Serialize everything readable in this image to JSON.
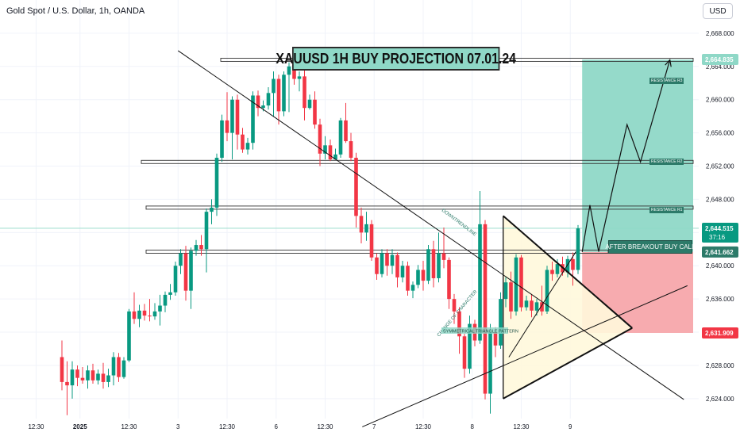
{
  "header": {
    "symbol": "Gold Spot / U.S. Dollar, 1h, OANDA",
    "currency": "USD"
  },
  "annotations": {
    "title": "XAUUSD 1H BUY PROJECTION 07.01.24",
    "buy_call": "AFTER BREAKOUT BUY CALL",
    "resistance_r1": "RESISTANCE R1",
    "resistance_r2": "RESISTANCE R2",
    "resistance_r3": "RESISTANCE R3",
    "downtrendline": "DOWNTRENDLINE",
    "change_of_character": "CHANGE OF CHARACTER",
    "triangle": "SYMMETRICAL TRIANGLE PATTERN"
  },
  "price_tags": {
    "target": "2,664.835",
    "current": "2,644.515",
    "countdown": "37:16",
    "entry": "2,641.662",
    "stop": "2,631.909"
  },
  "colors": {
    "up": "#089981",
    "down": "#f23645",
    "target_zone": "#8fd8c7",
    "stop_zone": "#f7a6ab",
    "triangle_fill": "#fff8dc",
    "label_green": "#2c7a69",
    "stop_tag": "#f23645"
  },
  "chart_data": {
    "type": "candlestick",
    "y_axis": {
      "range": [
        2621.6,
        2672.0
      ],
      "ticks": [
        2624,
        2628,
        2632,
        2636,
        2640,
        2644,
        2648,
        2652,
        2656,
        2660,
        2664,
        2668
      ],
      "tick_labels": [
        "2,624.000",
        "2,628.000",
        "2,632.000",
        "2,636.000",
        "2,640.000",
        "2,644.000",
        "2,648.000",
        "2,652.000",
        "2,656.000",
        "2,660.000",
        "2,664.000",
        "2,668.000"
      ]
    },
    "x_axis": {
      "range": [
        0,
        110
      ],
      "ticks": [
        {
          "x": -5,
          "label": "12:30"
        },
        {
          "x": 3.5,
          "label": "2025",
          "bold": true
        },
        {
          "x": 13,
          "label": "12:30"
        },
        {
          "x": 22.5,
          "label": "3"
        },
        {
          "x": 32,
          "label": "12:30"
        },
        {
          "x": 41.5,
          "label": "6"
        },
        {
          "x": 51,
          "label": "12:30"
        },
        {
          "x": 60.5,
          "label": "7"
        },
        {
          "x": 70,
          "label": "12:30"
        },
        {
          "x": 79.5,
          "label": "8"
        },
        {
          "x": 89,
          "label": "12:30"
        },
        {
          "x": 98.5,
          "label": "9"
        }
      ]
    },
    "candles": [
      [
        2629.0,
        2626.0,
        2631.0,
        2625.0
      ],
      [
        2626.0,
        2625.6,
        2628.5,
        2622.0
      ],
      [
        2625.6,
        2627.5,
        2628.5,
        2624.0
      ],
      [
        2627.5,
        2626.5,
        2628.0,
        2625.5
      ],
      [
        2626.5,
        2626.2,
        2627.8,
        2625.8
      ],
      [
        2626.2,
        2627.4,
        2628.0,
        2625.2
      ],
      [
        2627.4,
        2626.2,
        2628.2,
        2625.8
      ],
      [
        2626.2,
        2627.0,
        2627.5,
        2625.7
      ],
      [
        2627.0,
        2626.0,
        2628.3,
        2625.2
      ],
      [
        2626.0,
        2626.8,
        2627.6,
        2625.4
      ],
      [
        2626.8,
        2629.0,
        2629.6,
        2625.6
      ],
      [
        2629.0,
        2626.6,
        2629.5,
        2626.0
      ],
      [
        2626.6,
        2628.6,
        2629.0,
        2626.4
      ],
      [
        2628.6,
        2634.5,
        2634.8,
        2628.4
      ],
      [
        2634.5,
        2633.6,
        2636.8,
        2633.0
      ],
      [
        2633.6,
        2634.6,
        2635.3,
        2632.6
      ],
      [
        2634.6,
        2634.0,
        2635.4,
        2633.4
      ],
      [
        2634.0,
        2633.9,
        2636.0,
        2633.3
      ],
      [
        2633.9,
        2634.5,
        2635.5,
        2633.5
      ],
      [
        2634.5,
        2635.2,
        2636.5,
        2632.8
      ],
      [
        2635.2,
        2636.5,
        2636.9,
        2634.4
      ],
      [
        2636.5,
        2636.8,
        2637.8,
        2635.9
      ],
      [
        2636.8,
        2640.0,
        2640.5,
        2636.4
      ],
      [
        2640.0,
        2641.5,
        2642.0,
        2639.0
      ],
      [
        2641.5,
        2637.0,
        2642.4,
        2635.8
      ],
      [
        2637.0,
        2641.8,
        2642.2,
        2634.8
      ],
      [
        2641.8,
        2642.5,
        2643.1,
        2641.2
      ],
      [
        2642.5,
        2642.0,
        2643.7,
        2641.2
      ],
      [
        2642.0,
        2646.5,
        2646.9,
        2639.2
      ],
      [
        2646.5,
        2647.0,
        2648.0,
        2645.0
      ],
      [
        2647.0,
        2653.0,
        2653.5,
        2646.0
      ],
      [
        2653.0,
        2657.5,
        2658.2,
        2652.5
      ],
      [
        2657.5,
        2656.0,
        2660.9,
        2655.0
      ],
      [
        2656.0,
        2660.0,
        2660.4,
        2652.8
      ],
      [
        2660.0,
        2655.8,
        2660.6,
        2654.0
      ],
      [
        2655.8,
        2654.0,
        2656.6,
        2653.6
      ],
      [
        2654.0,
        2654.8,
        2655.4,
        2653.4
      ],
      [
        2654.8,
        2660.5,
        2661.0,
        2654.0
      ],
      [
        2660.5,
        2659.0,
        2661.1,
        2658.0
      ],
      [
        2659.0,
        2659.3,
        2659.9,
        2658.6
      ],
      [
        2659.3,
        2660.8,
        2661.5,
        2658.8
      ],
      [
        2660.8,
        2662.5,
        2663.4,
        2658.0
      ],
      [
        2662.5,
        2658.6,
        2663.0,
        2657.0
      ],
      [
        2658.6,
        2663.0,
        2663.4,
        2658.0
      ],
      [
        2663.0,
        2664.0,
        2664.5,
        2658.5
      ],
      [
        2664.0,
        2662.5,
        2665.3,
        2661.8
      ],
      [
        2662.5,
        2662.8,
        2663.4,
        2661.0
      ],
      [
        2662.8,
        2659.0,
        2663.6,
        2657.5
      ],
      [
        2659.0,
        2660.0,
        2660.6,
        2658.8
      ],
      [
        2660.0,
        2657.0,
        2661.0,
        2656.5
      ],
      [
        2657.0,
        2653.5,
        2657.7,
        2652.0
      ],
      [
        2653.5,
        2654.5,
        2655.6,
        2652.8
      ],
      [
        2654.5,
        2652.8,
        2655.2,
        2652.6
      ],
      [
        2652.8,
        2653.4,
        2654.1,
        2652.8
      ],
      [
        2653.4,
        2657.5,
        2657.8,
        2653.0
      ],
      [
        2657.5,
        2655.0,
        2659.6,
        2654.8
      ],
      [
        2655.0,
        2653.0,
        2656.0,
        2652.6
      ],
      [
        2653.0,
        2646.0,
        2653.6,
        2644.6
      ],
      [
        2646.0,
        2644.0,
        2647.0,
        2642.7
      ],
      [
        2644.0,
        2645.0,
        2646.5,
        2643.0
      ],
      [
        2645.0,
        2641.0,
        2645.5,
        2640.6
      ],
      [
        2641.0,
        2639.0,
        2641.5,
        2638.3
      ],
      [
        2639.0,
        2641.5,
        2642.0,
        2638.6
      ],
      [
        2641.5,
        2640.0,
        2642.0,
        2638.8
      ],
      [
        2640.0,
        2641.3,
        2642.0,
        2639.0
      ],
      [
        2641.3,
        2638.6,
        2641.6,
        2637.4
      ],
      [
        2638.6,
        2640.0,
        2640.6,
        2638.0
      ],
      [
        2640.0,
        2637.0,
        2640.5,
        2636.4
      ],
      [
        2637.0,
        2637.7,
        2638.1,
        2636.1
      ],
      [
        2637.7,
        2639.5,
        2640.1,
        2637.3
      ],
      [
        2639.5,
        2638.2,
        2640.6,
        2637.0
      ],
      [
        2638.2,
        2642.0,
        2642.5,
        2637.8
      ],
      [
        2642.0,
        2638.5,
        2643.0,
        2637.4
      ],
      [
        2638.5,
        2641.5,
        2644.0,
        2638.0
      ],
      [
        2641.5,
        2640.7,
        2644.6,
        2639.7
      ],
      [
        2640.7,
        2636.0,
        2641.0,
        2634.8
      ],
      [
        2636.0,
        2634.5,
        2636.6,
        2633.0
      ],
      [
        2634.5,
        2631.5,
        2635.0,
        2629.4
      ],
      [
        2631.5,
        2627.6,
        2631.8,
        2626.5
      ],
      [
        2627.6,
        2633.0,
        2634.0,
        2627.0
      ],
      [
        2633.0,
        2631.0,
        2633.5,
        2630.3
      ],
      [
        2631.0,
        2645.0,
        2649.0,
        2630.6
      ],
      [
        2645.0,
        2624.6,
        2645.5,
        2623.9
      ],
      [
        2624.6,
        2632.0,
        2633.0,
        2622.2
      ],
      [
        2632.0,
        2630.4,
        2632.6,
        2629.0
      ],
      [
        2630.4,
        2636.0,
        2636.8,
        2630.0
      ],
      [
        2636.0,
        2638.0,
        2638.6,
        2635.0
      ],
      [
        2638.0,
        2634.5,
        2639.3,
        2633.6
      ],
      [
        2634.5,
        2641.0,
        2641.4,
        2634.0
      ],
      [
        2641.0,
        2635.0,
        2641.3,
        2634.5
      ],
      [
        2635.0,
        2635.8,
        2636.4,
        2634.6
      ],
      [
        2635.8,
        2634.6,
        2636.6,
        2633.8
      ],
      [
        2634.6,
        2635.6,
        2636.0,
        2634.0
      ],
      [
        2635.6,
        2634.5,
        2637.6,
        2634.0
      ],
      [
        2634.5,
        2639.5,
        2640.0,
        2634.2
      ],
      [
        2639.5,
        2639.0,
        2640.5,
        2638.2
      ],
      [
        2639.0,
        2640.2,
        2640.8,
        2638.6
      ],
      [
        2640.2,
        2639.2,
        2641.1,
        2638.8
      ],
      [
        2639.2,
        2640.8,
        2641.2,
        2638.6
      ],
      [
        2640.8,
        2639.5,
        2641.6,
        2637.6
      ],
      [
        2639.5,
        2644.5,
        2644.9,
        2639.0
      ]
    ],
    "levels": [
      {
        "name": "RESISTANCE R3",
        "price": 2664.8
      },
      {
        "name": "RESISTANCE R2",
        "price": 2652.5
      },
      {
        "name": "RESISTANCE R1",
        "price": 2647.0
      },
      {
        "name": "AFTER BREAKOUT BUY CALL",
        "price": 2641.7
      }
    ],
    "target_zone": {
      "x1": 100.8,
      "x2": 128,
      "y1": 2641.66,
      "y2": 2664.83
    },
    "stop_zone": {
      "x1": 100.8,
      "x2": 128,
      "y1": 2631.91,
      "y2": 2641.66
    },
    "downtrend_line": [
      [
        22.5,
        2665.9
      ],
      [
        120.5,
        2623.9
      ]
    ],
    "triangle": {
      "apex": [
        110.5,
        2632.5
      ],
      "top": [
        85.5,
        2646.0
      ],
      "bottom": [
        85.5,
        2624.0
      ]
    },
    "lower_trendline": [
      [
        58.2,
        2620.6
      ],
      [
        121.2,
        2637.6
      ]
    ],
    "choch_line": [
      [
        86.6,
        2629.0
      ],
      [
        99.6,
        2641.7
      ]
    ],
    "projection_path": [
      [
        100.8,
        2641.66
      ],
      [
        102.3,
        2647.3
      ],
      [
        104.0,
        2641.7
      ],
      [
        109.5,
        2657.0
      ],
      [
        112.1,
        2652.5
      ],
      [
        117.8,
        2664.8
      ]
    ],
    "current_price": 2644.515
  }
}
